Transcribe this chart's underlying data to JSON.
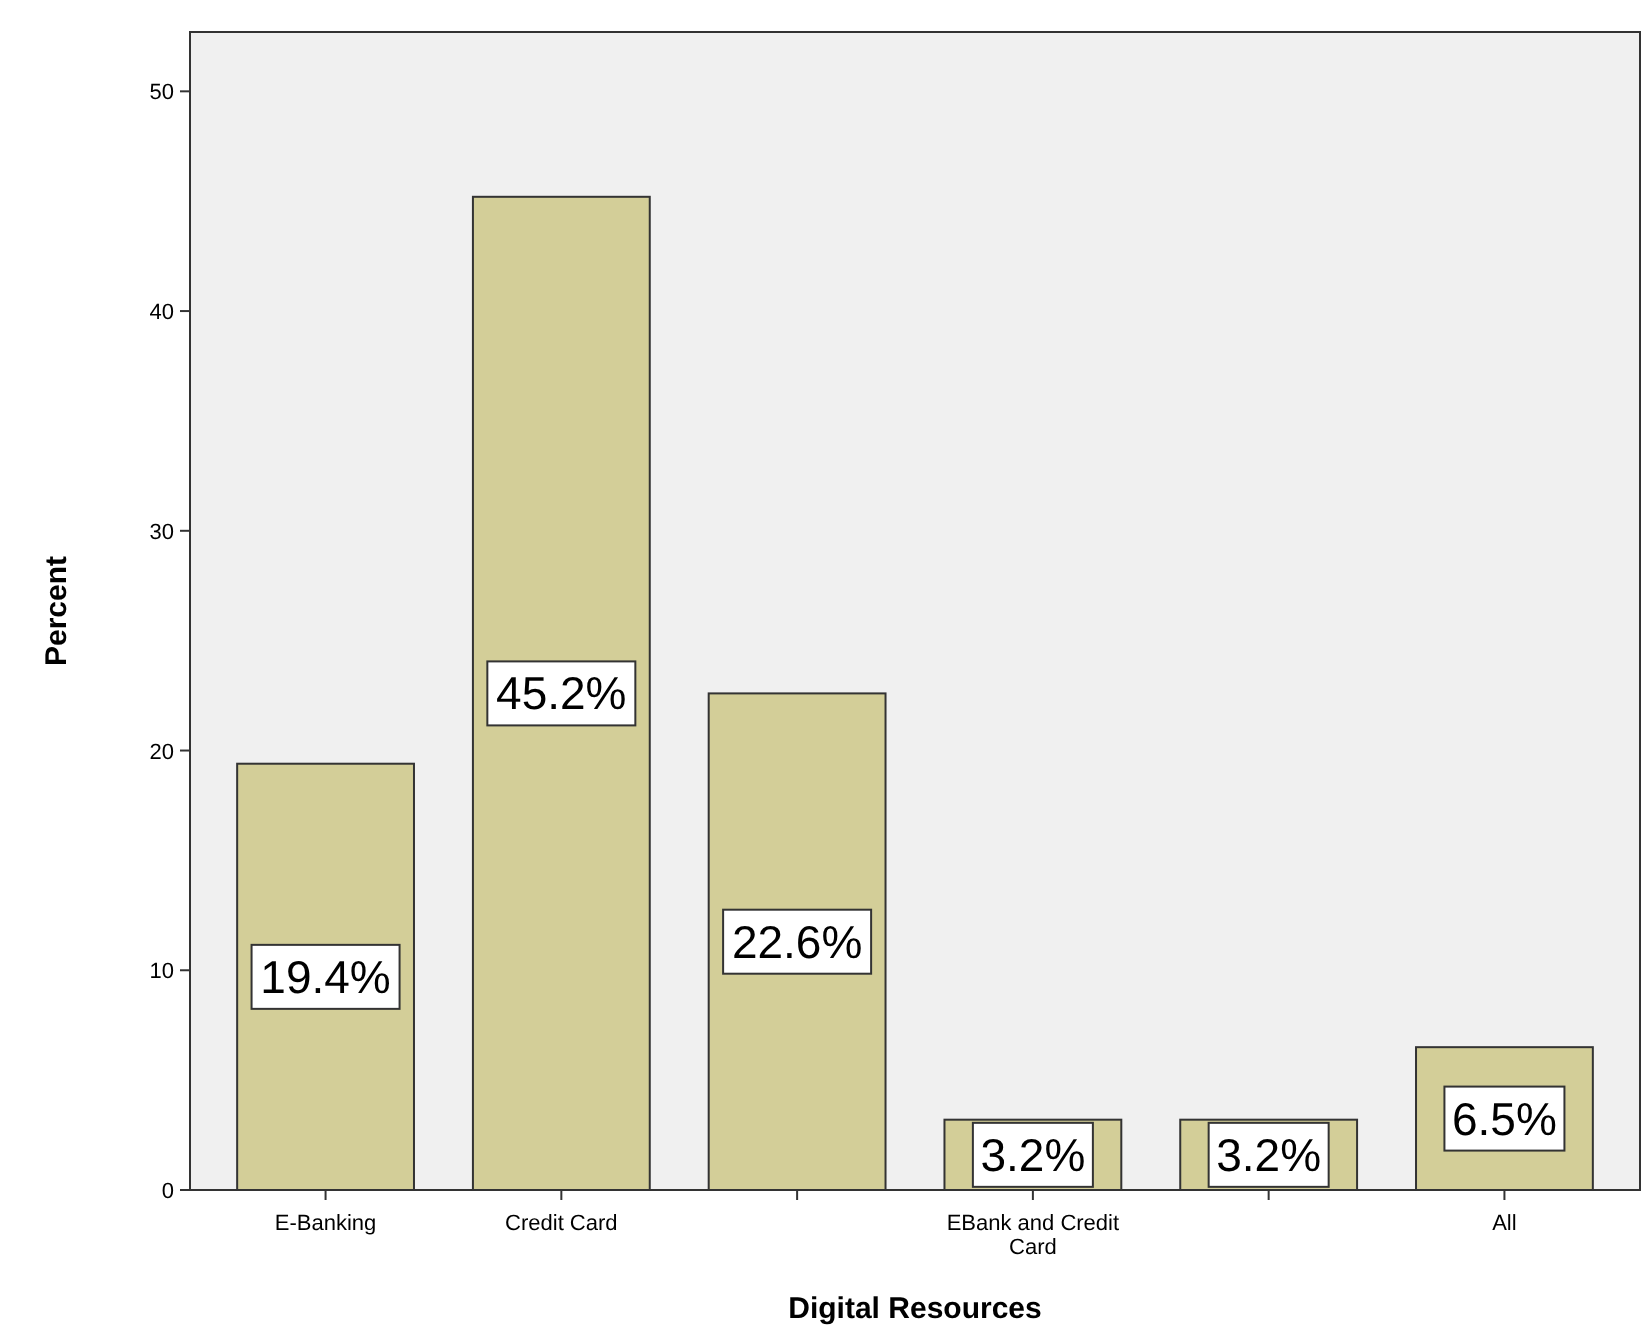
{
  "chart_data": {
    "type": "bar",
    "xlabel": "Digital Resources",
    "ylabel": "Percent",
    "categories": [
      "E-Banking",
      "Credit Card",
      null,
      "EBank and Credit Card",
      null,
      "All"
    ],
    "values": [
      19.4,
      45.2,
      22.6,
      3.2,
      3.2,
      6.5
    ],
    "value_labels": [
      "19.4%",
      "45.2%",
      "22.6%",
      "3.2%",
      "3.2%",
      "6.5%"
    ],
    "color": "#d3ce98",
    "ylim": [
      0,
      52.7
    ],
    "yticks": [
      0,
      10,
      20,
      30,
      40,
      50
    ],
    "grid": false
  }
}
